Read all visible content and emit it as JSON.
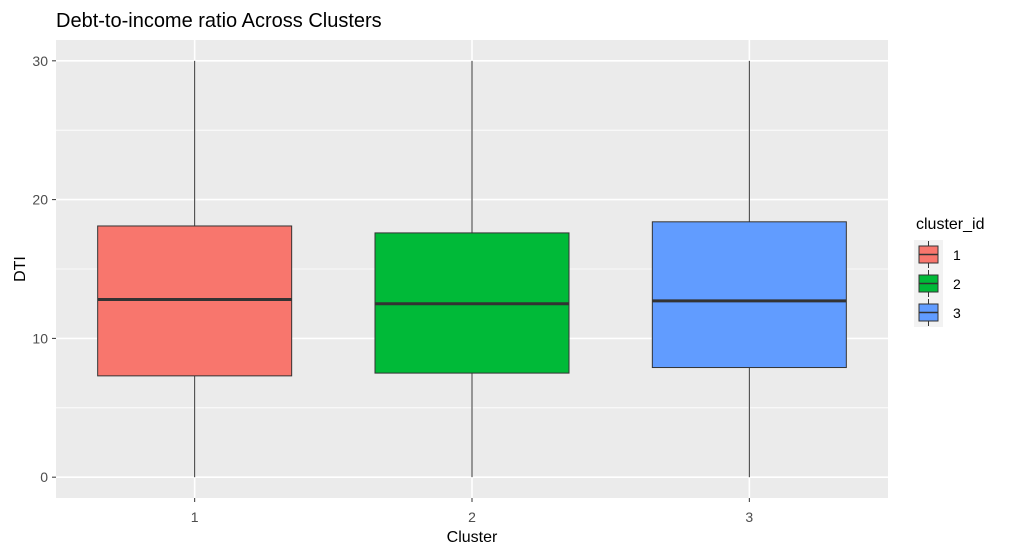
{
  "chart_data": {
    "type": "box",
    "title": "Debt-to-income ratio Across Clusters",
    "xlabel": "Cluster",
    "ylabel": "DTI",
    "ylim": [
      -1.5,
      31.5
    ],
    "yticks": [
      0,
      10,
      20,
      30
    ],
    "categories": [
      "1",
      "2",
      "3"
    ],
    "grid": true,
    "legend": {
      "title": "cluster_id",
      "placement": "right",
      "entries": [
        "1",
        "2",
        "3"
      ]
    },
    "series": [
      {
        "category": "1",
        "min": 0,
        "q1": 7.3,
        "median": 12.8,
        "q3": 18.1,
        "max": 30,
        "color": "#F8766D"
      },
      {
        "category": "2",
        "min": 0,
        "q1": 7.5,
        "median": 12.5,
        "q3": 17.6,
        "max": 30,
        "color": "#00BA38"
      },
      {
        "category": "3",
        "min": 0,
        "q1": 7.9,
        "median": 12.7,
        "q3": 18.4,
        "max": 30,
        "color": "#619CFF"
      }
    ],
    "colors": {
      "panel_background": "#EBEBEB",
      "grid": "#FFFFFF",
      "median_line": "#333333"
    }
  }
}
